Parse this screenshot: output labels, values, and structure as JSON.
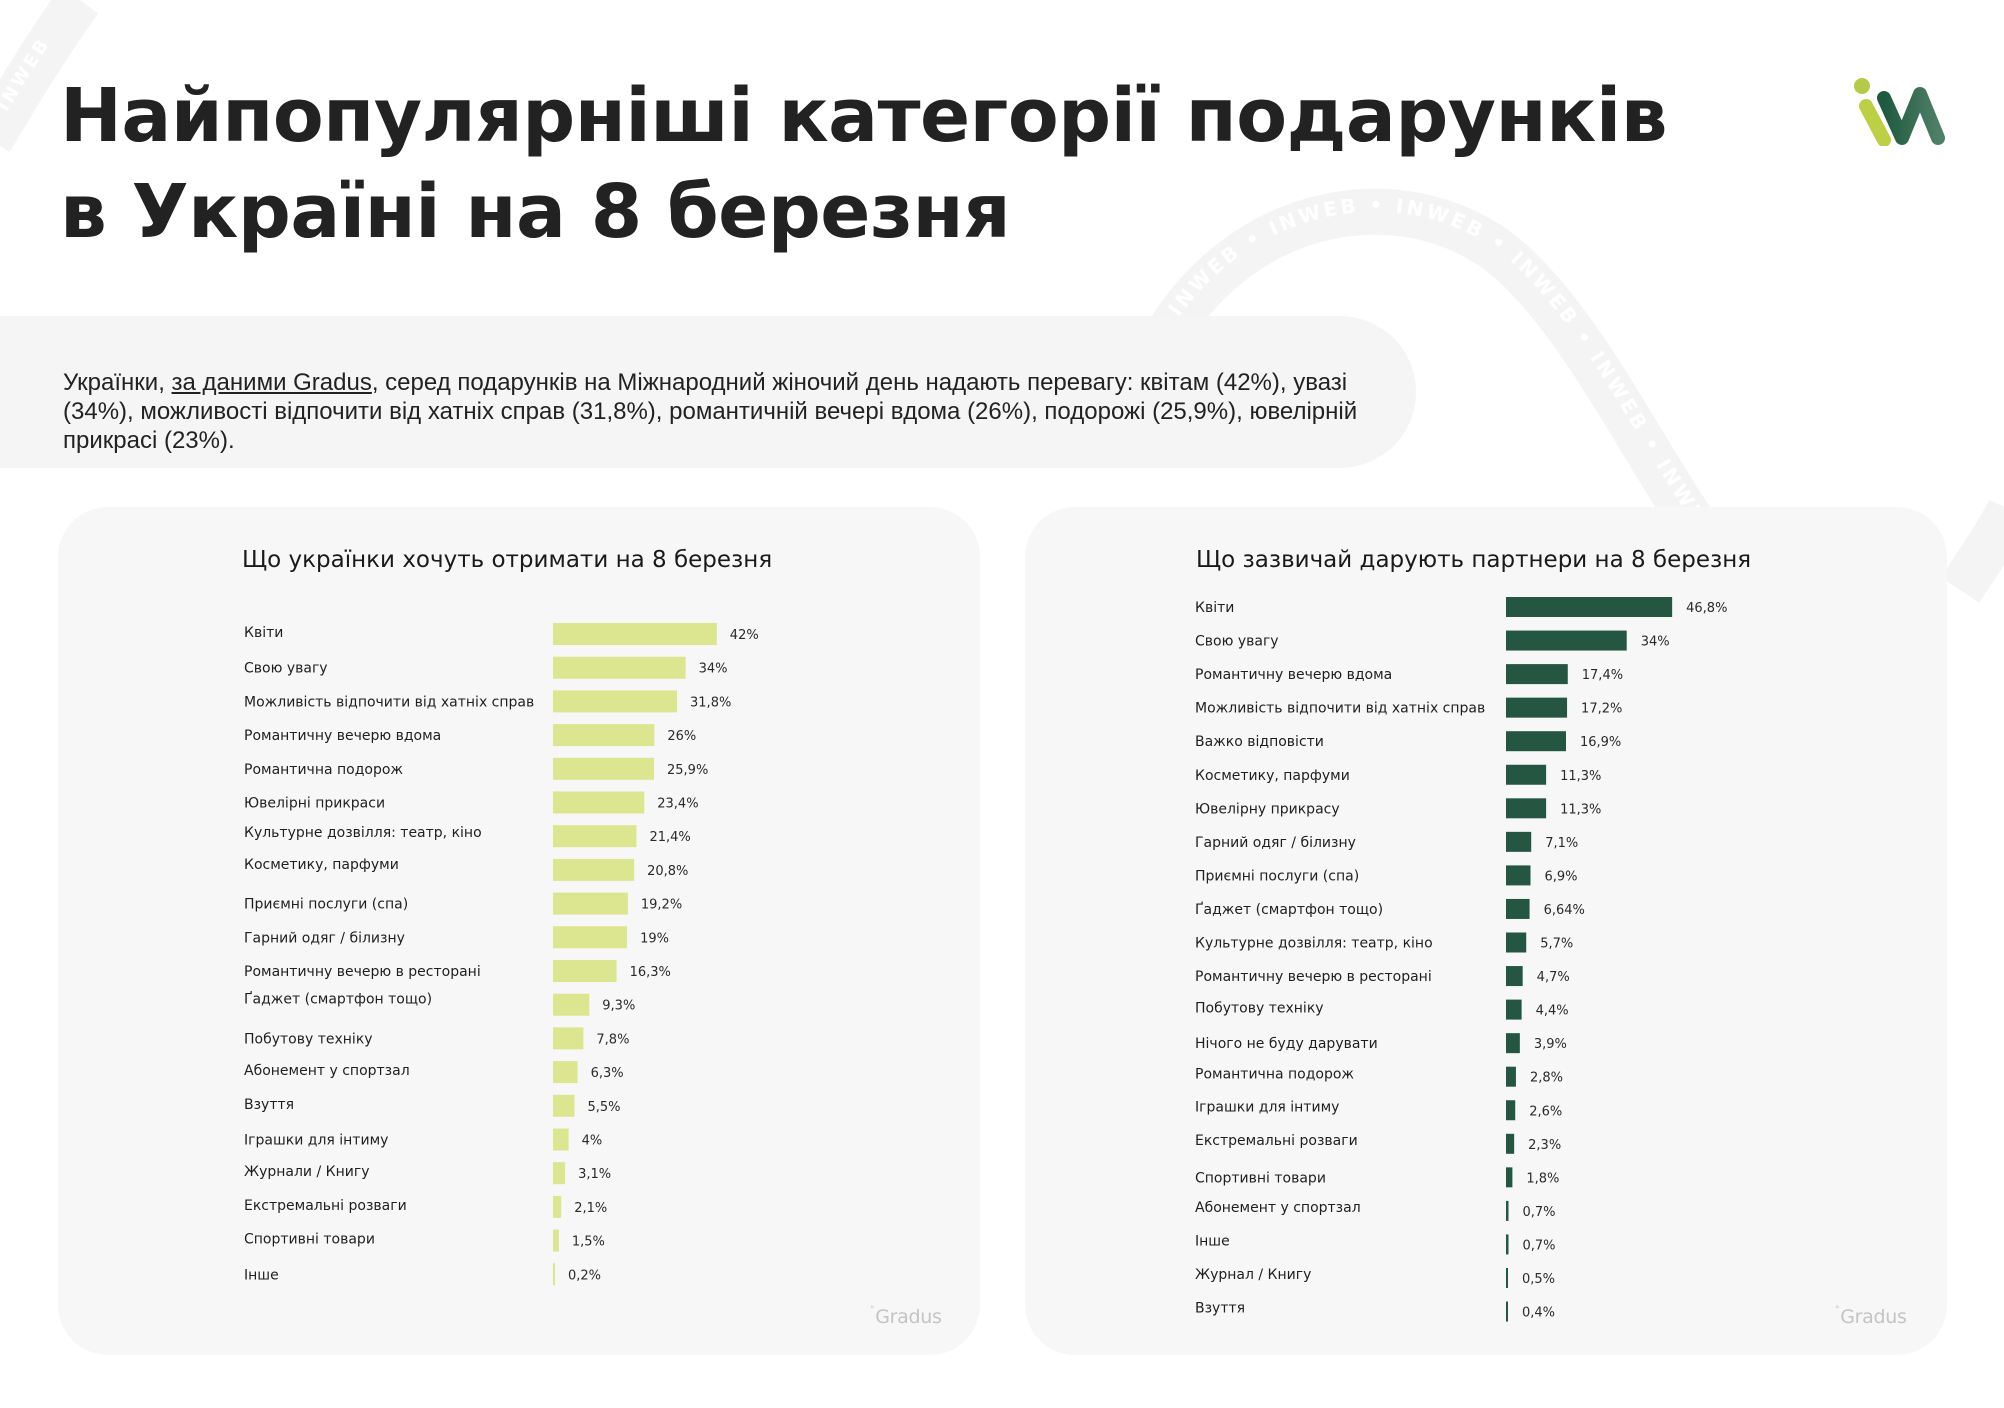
{
  "header": {
    "title_line1": "Найпопулярніші категорії подарунків",
    "title_line2": "в Україні на 8 березня",
    "logo_icon": "inweb-logo-icon",
    "watermark_text": "INWEB"
  },
  "intro": {
    "text_before_link": "Українки, ",
    "link_text": "за даними Gradus",
    "text_after_link": ", серед подарунків на Міжнародний жіночий день надають перевагу: квітам (42%), увазі (34%), можливості відпочити від хатніх справ (31,8%), романтичній вечері вдома (26%), подорожі (25,9%), ювелірній прикрасі (23%)."
  },
  "colors": {
    "left_bar": "#dce58f",
    "right_bar": "#245642",
    "logo_light": "#b5c94a",
    "logo_dark": "#1e5a3f",
    "card_bg": "#f7f7f7"
  },
  "source": "Gradus",
  "source_symbol": "°",
  "chart_data": [
    {
      "type": "bar",
      "orientation": "horizontal",
      "title": "Що українки хочуть отримати на 8 березня",
      "xlabel": "",
      "ylabel": "",
      "xlim": [
        0,
        50
      ],
      "grid": false,
      "legend": "none",
      "categories": [
        "Квіти",
        "Свою увагу",
        "Можливість відпочити від хатніх справ",
        "Романтичну вечерю вдома",
        "Романтична подорож",
        "Ювелірні прикраси",
        "Культурне дозвілля: театр, кіно",
        "Косметику, парфуми",
        "Приємні послуги (спа)",
        "Гарний одяг / білизну",
        "Романтичну вечерю в ресторані",
        "Ґаджет (смартфон тощо)",
        "Побутову техніку",
        "Абонемент у спортзал",
        "Взуття",
        "Іграшки для інтиму",
        "Журнали / Книгу",
        "Екстремальні розваги",
        "Спортивні товари",
        "Інше"
      ],
      "values": [
        42,
        34,
        31.8,
        26,
        25.9,
        23.4,
        21.4,
        20.8,
        19.2,
        19,
        16.3,
        9.3,
        7.8,
        6.3,
        5.5,
        4,
        3.1,
        2.1,
        1.5,
        0.2
      ],
      "value_labels": [
        "42%",
        "34%",
        "31,8%",
        "26%",
        "25,9%",
        "23,4%",
        "21,4%",
        "20,8%",
        "19,2%",
        "19%",
        "16,3%",
        "9,3%",
        "7,8%",
        "6,3%",
        "5,5%",
        "4%",
        "3,1%",
        "2,1%",
        "1,5%",
        "0,2%"
      ]
    },
    {
      "type": "bar",
      "orientation": "horizontal",
      "title": "Що зазвичай дарують партнери на 8 березня",
      "xlabel": "",
      "ylabel": "",
      "xlim": [
        0,
        50
      ],
      "grid": false,
      "legend": "none",
      "categories": [
        "Квіти",
        "Свою увагу",
        "Романтичну вечерю вдома",
        "Можливість відпочити від хатніх справ",
        "Важко відповісти",
        "Косметику, парфуми",
        "Ювелірну прикрасу",
        "Гарний одяг / білизну",
        "Приємні послуги (спа)",
        "Ґаджет (смартфон тощо)",
        "Культурне дозвілля: театр, кіно",
        "Романтичну вечерю в ресторані",
        "Побутову техніку",
        "Нічого не буду дарувати",
        "Романтична подорож",
        "Іграшки для інтиму",
        "Екстремальні розваги",
        "Спортивні товари",
        "Абонемент у спортзал",
        "Інше",
        "Журнал / Книгу",
        "Взуття"
      ],
      "values": [
        46.8,
        34,
        17.4,
        17.2,
        16.9,
        11.3,
        11.3,
        7.1,
        6.9,
        6.64,
        5.7,
        4.7,
        4.4,
        3.9,
        2.8,
        2.6,
        2.3,
        1.8,
        0.7,
        0.7,
        0.5,
        0.4
      ],
      "value_labels": [
        "46,8%",
        "34%",
        "17,4%",
        "17,2%",
        "16,9%",
        "11,3%",
        "11,3%",
        "7,1%",
        "6,9%",
        "6,64%",
        "5,7%",
        "4,7%",
        "4,4%",
        "3,9%",
        "2,8%",
        "2,6%",
        "2,3%",
        "1,8%",
        "0,7%",
        "0,7%",
        "0,5%",
        "0,4%"
      ]
    }
  ]
}
